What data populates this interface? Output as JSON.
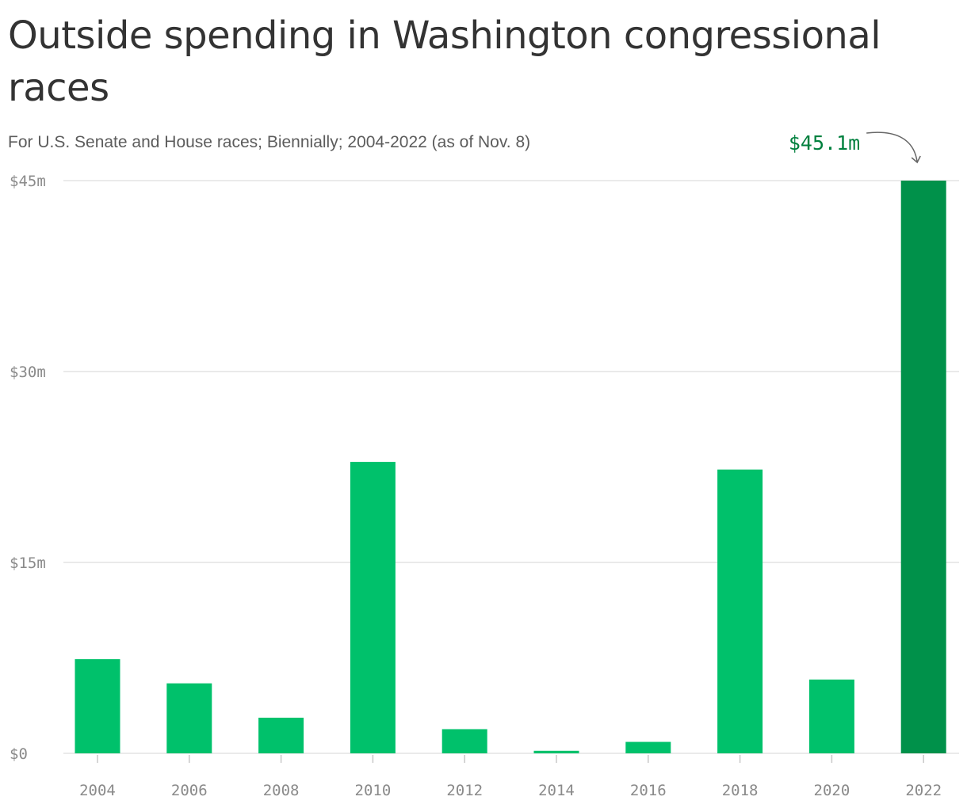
{
  "colors": {
    "bar": "#00c16b",
    "highlight_bar": "#00914a",
    "callout_text": "#00803e",
    "gridline": "#e3e3e3",
    "axis_text": "#8a8a8a"
  },
  "chart_data": {
    "type": "bar",
    "title": "Outside spending in Washington congressional races",
    "subtitle": "For U.S. Senate and House races; Biennially; 2004-2022 (as of Nov. 8)",
    "categories": [
      "2004",
      "2006",
      "2008",
      "2010",
      "2012",
      "2014",
      "2016",
      "2018",
      "2020",
      "2022"
    ],
    "values": [
      7.4,
      5.5,
      2.8,
      22.9,
      1.9,
      0.2,
      0.9,
      22.3,
      5.8,
      45.1
    ],
    "ylim": [
      0,
      45
    ],
    "yticks": [
      0,
      15,
      30,
      45
    ],
    "ytick_labels": [
      "$0",
      "$15m",
      "$30m",
      "$45m"
    ],
    "xlabel": "",
    "ylabel": "",
    "grid": true,
    "highlight": {
      "category": "2022",
      "label": "$45.1m"
    }
  }
}
